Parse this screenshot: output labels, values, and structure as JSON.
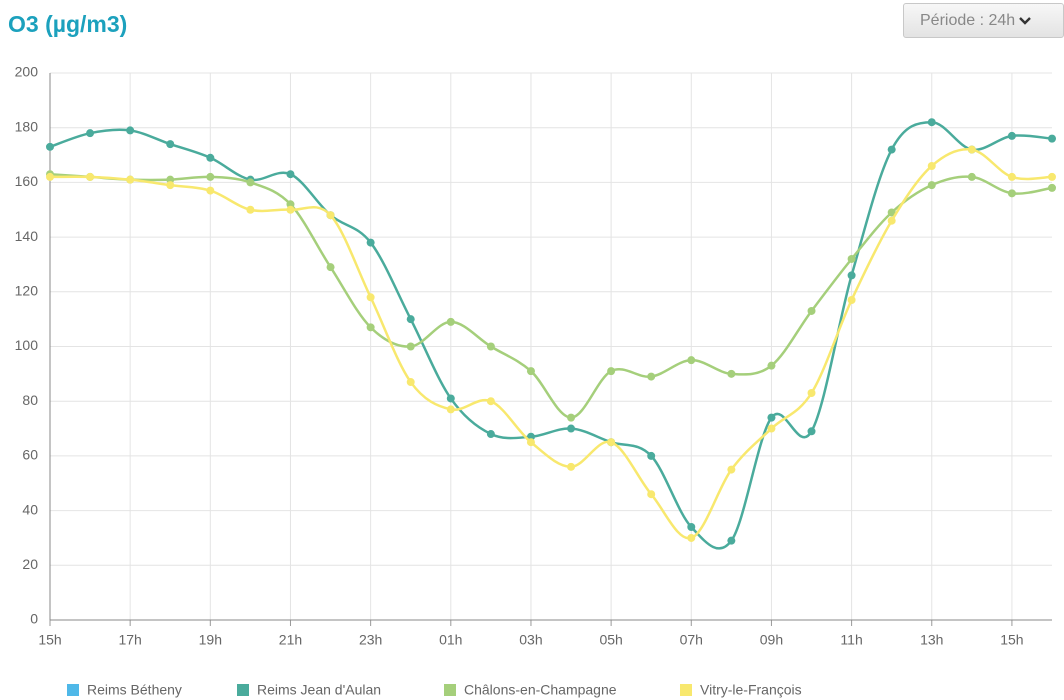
{
  "controls": {
    "period": "Période : 24h"
  },
  "chart_data": {
    "type": "line",
    "title": "O3 (µg/m3)",
    "categories": [
      "15h",
      null,
      "17h",
      null,
      "19h",
      null,
      "21h",
      null,
      "23h",
      null,
      "01h",
      null,
      "03h",
      null,
      "05h",
      null,
      "07h",
      null,
      "09h",
      null,
      "11h",
      null,
      "13h",
      null,
      "15h",
      null
    ],
    "ylim": [
      0,
      200
    ],
    "yticks": [
      0,
      20,
      40,
      60,
      80,
      100,
      120,
      140,
      160,
      180,
      200
    ],
    "grid": true,
    "legend": "bottom",
    "series": [
      {
        "name": "Reims Bétheny",
        "color": "#4fb8e8",
        "values": [
          null,
          null,
          null,
          null,
          null,
          null,
          null,
          null,
          null,
          null,
          null,
          null,
          null,
          null,
          null,
          null,
          null,
          null,
          null,
          null,
          null,
          null,
          null,
          null,
          null,
          null
        ]
      },
      {
        "name": "Reims Jean d'Aulan",
        "color": "#4aab9c",
        "values": [
          173,
          178,
          179,
          174,
          169,
          161,
          163,
          148,
          138,
          110,
          81,
          68,
          67,
          70,
          65,
          60,
          34,
          29,
          74,
          69,
          126,
          172,
          182,
          172,
          177,
          176
        ]
      },
      {
        "name": "Châlons-en-Champagne",
        "color": "#a5cf7b",
        "values": [
          163,
          162,
          161,
          161,
          162,
          160,
          152,
          129,
          107,
          100,
          109,
          100,
          91,
          74,
          91,
          89,
          95,
          90,
          93,
          113,
          132,
          149,
          159,
          162,
          156,
          158
        ]
      },
      {
        "name": "Vitry-le-François",
        "color": "#f8e86e",
        "values": [
          162,
          162,
          161,
          159,
          157,
          150,
          150,
          148,
          118,
          87,
          77,
          80,
          65,
          56,
          65,
          46,
          30,
          55,
          70,
          83,
          117,
          146,
          166,
          172,
          162,
          162
        ]
      }
    ]
  }
}
